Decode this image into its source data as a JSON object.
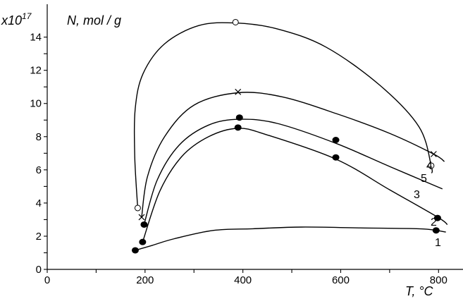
{
  "chart_data": {
    "type": "line",
    "y_axis_title": "N, mol / g",
    "y_multiplier": {
      "base": "x10",
      "exponent": "17"
    },
    "x_axis_title": "T, °C",
    "xlim": [
      0,
      850
    ],
    "ylim": [
      0,
      15
    ],
    "x_ticks": [
      0,
      200,
      400,
      600,
      800
    ],
    "y_ticks": [
      0,
      2,
      4,
      6,
      8,
      10,
      12,
      14
    ],
    "grid": false,
    "series": [
      {
        "name": "1",
        "marker": "filled-circle",
        "points": [
          [
            180,
            1.15
          ],
          [
            795,
            2.35
          ]
        ],
        "curve": [
          [
            180,
            1.15
          ],
          [
            215,
            1.45
          ],
          [
            260,
            1.85
          ],
          [
            340,
            2.35
          ],
          [
            420,
            2.45
          ],
          [
            520,
            2.55
          ],
          [
            640,
            2.5
          ],
          [
            760,
            2.45
          ],
          [
            795,
            2.35
          ],
          [
            815,
            2.25
          ]
        ]
      },
      {
        "name": "2",
        "marker": "filled-circle",
        "points": [
          [
            195,
            1.65
          ],
          [
            390,
            8.55
          ],
          [
            590,
            6.75
          ],
          [
            798,
            3.1
          ]
        ],
        "curve": [
          [
            195,
            1.65
          ],
          [
            230,
            4.7
          ],
          [
            275,
            6.8
          ],
          [
            330,
            8.0
          ],
          [
            390,
            8.5
          ],
          [
            450,
            8.1
          ],
          [
            590,
            6.65
          ],
          [
            700,
            4.8
          ],
          [
            798,
            3.15
          ],
          [
            818,
            2.7
          ]
        ]
      },
      {
        "name": "3",
        "marker": "filled-circle",
        "points": [
          [
            198,
            2.7
          ],
          [
            393,
            9.15
          ],
          [
            590,
            7.8
          ]
        ],
        "curve": [
          [
            198,
            2.7
          ],
          [
            225,
            5.4
          ],
          [
            270,
            7.5
          ],
          [
            330,
            8.7
          ],
          [
            393,
            9.05
          ],
          [
            470,
            8.8
          ],
          [
            590,
            7.6
          ],
          [
            700,
            6.2
          ],
          [
            808,
            4.85
          ]
        ]
      },
      {
        "name": "4",
        "marker": "cross",
        "points": [
          [
            193,
            3.15
          ],
          [
            390,
            10.7
          ],
          [
            790,
            6.95
          ]
        ],
        "curve": [
          [
            193,
            3.15
          ],
          [
            205,
            5.6
          ],
          [
            240,
            8.0
          ],
          [
            300,
            9.9
          ],
          [
            390,
            10.65
          ],
          [
            480,
            10.4
          ],
          [
            590,
            9.4
          ],
          [
            700,
            8.2
          ],
          [
            790,
            6.95
          ],
          [
            812,
            6.5
          ]
        ]
      },
      {
        "name": "5",
        "marker": "open-circle",
        "points": [
          [
            185,
            3.7
          ],
          [
            385,
            14.9
          ],
          [
            785,
            6.25
          ]
        ],
        "curve": [
          [
            185,
            3.7
          ],
          [
            179,
            6.8
          ],
          [
            180,
            9.7
          ],
          [
            196,
            11.8
          ],
          [
            240,
            13.6
          ],
          [
            310,
            14.7
          ],
          [
            385,
            14.85
          ],
          [
            470,
            14.5
          ],
          [
            570,
            13.4
          ],
          [
            680,
            11.1
          ],
          [
            760,
            8.6
          ],
          [
            785,
            6.25
          ],
          [
            786,
            5.8
          ]
        ]
      }
    ]
  }
}
